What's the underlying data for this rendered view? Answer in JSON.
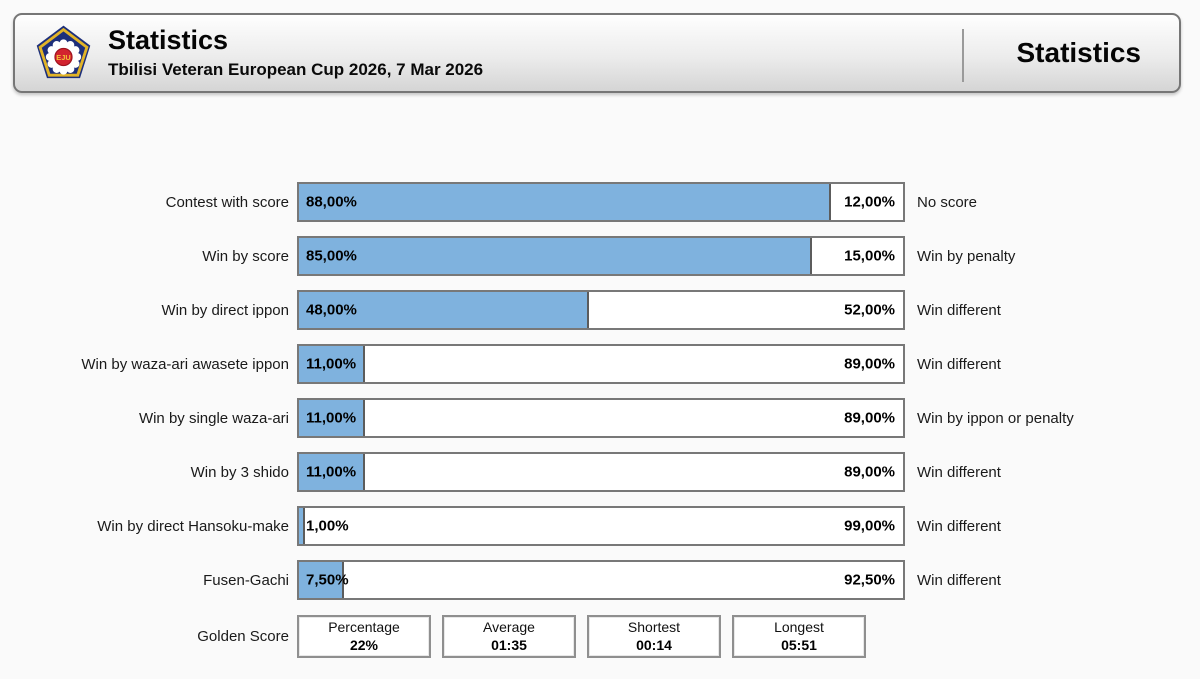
{
  "header": {
    "title": "Statistics",
    "subtitle": "Tbilisi Veteran European Cup 2026, 7 Mar 2026",
    "right_title": "Statistics",
    "logo": "eju-logo"
  },
  "chart_data": {
    "type": "bar",
    "orientation": "horizontal-stacked",
    "unit": "percent",
    "xlim": [
      0,
      100
    ],
    "grid": false,
    "colors": {
      "bar_fill": "#7fb2de",
      "bar_border": "#787878",
      "fill_divider": "#5c5c5c",
      "remainder_fill": "#ffffff"
    },
    "rows": [
      {
        "left_label": "Contest with score",
        "left_value": "88,00%",
        "left_pct": 88,
        "right_value": "12,00%",
        "right_pct": 12,
        "right_label": "No score"
      },
      {
        "left_label": "Win by score",
        "left_value": "85,00%",
        "left_pct": 85,
        "right_value": "15,00%",
        "right_pct": 15,
        "right_label": "Win by penalty"
      },
      {
        "left_label": "Win by direct ippon",
        "left_value": "48,00%",
        "left_pct": 48,
        "right_value": "52,00%",
        "right_pct": 52,
        "right_label": "Win different"
      },
      {
        "left_label": "Win by waza-ari awasete ippon",
        "left_value": "11,00%",
        "left_pct": 11,
        "right_value": "89,00%",
        "right_pct": 89,
        "right_label": "Win different"
      },
      {
        "left_label": "Win by single waza-ari",
        "left_value": "11,00%",
        "left_pct": 11,
        "right_value": "89,00%",
        "right_pct": 89,
        "right_label": "Win by ippon or penalty"
      },
      {
        "left_label": "Win by 3 shido",
        "left_value": "11,00%",
        "left_pct": 11,
        "right_value": "89,00%",
        "right_pct": 89,
        "right_label": "Win different"
      },
      {
        "left_label": "Win by direct Hansoku-make",
        "left_value": "1,00%",
        "left_pct": 1,
        "right_value": "99,00%",
        "right_pct": 99,
        "right_label": "Win different"
      },
      {
        "left_label": "Fusen-Gachi",
        "left_value": "7,50%",
        "left_pct": 7.5,
        "right_value": "92,50%",
        "right_pct": 92.5,
        "right_label": "Win different"
      }
    ],
    "golden_score": {
      "label": "Golden Score",
      "boxes": [
        {
          "label": "Percentage",
          "value": "22%"
        },
        {
          "label": "Average",
          "value": "01:35"
        },
        {
          "label": "Shortest",
          "value": "00:14"
        },
        {
          "label": "Longest",
          "value": "05:51"
        }
      ]
    }
  }
}
